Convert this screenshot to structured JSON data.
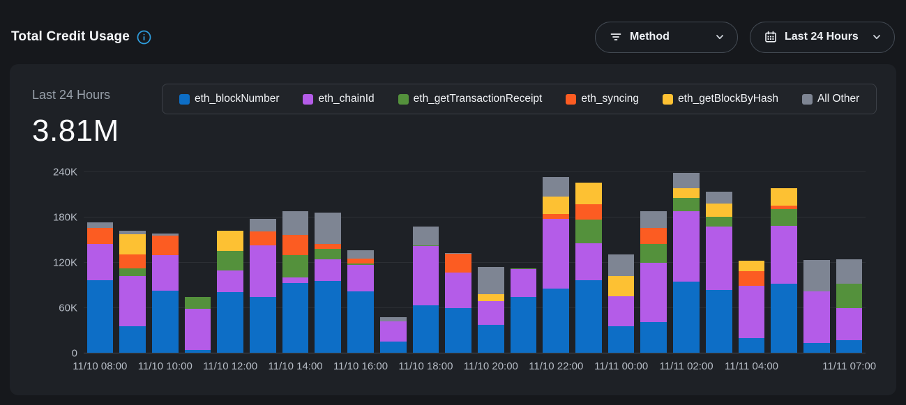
{
  "header": {
    "title": "Total Credit Usage",
    "filter_button": {
      "label": "Method"
    },
    "range_button": {
      "label": "Last 24 Hours"
    }
  },
  "summary": {
    "period_label": "Last 24 Hours",
    "total": "3.81M"
  },
  "colors": {
    "page_bg": "#16181c",
    "card_bg": "#1e2126",
    "accent_info": "#2f9fe0"
  },
  "chart_data": {
    "type": "bar",
    "stacked": true,
    "title": "Total Credit Usage - Last 24 Hours",
    "values_in": "thousands_of_credits",
    "ylim": [
      0,
      240000
    ],
    "y_ticks": [
      "0",
      "60K",
      "120K",
      "180K",
      "240K"
    ],
    "grid": true,
    "legend_position": "top",
    "categories": [
      "11/10 08:00",
      "11/10 09:00",
      "11/10 10:00",
      "11/10 11:00",
      "11/10 12:00",
      "11/10 13:00",
      "11/10 14:00",
      "11/10 15:00",
      "11/10 16:00",
      "11/10 17:00",
      "11/10 18:00",
      "11/10 19:00",
      "11/10 20:00",
      "11/10 21:00",
      "11/10 22:00",
      "11/10 23:00",
      "11/11 00:00",
      "11/11 01:00",
      "11/11 02:00",
      "11/11 03:00",
      "11/11 04:00",
      "11/11 05:00",
      "11/11 06:00",
      "11/11 07:00"
    ],
    "x_tick_labels": [
      "11/10 08:00",
      "11/10 10:00",
      "11/10 12:00",
      "11/10 14:00",
      "11/10 16:00",
      "11/10 18:00",
      "11/10 20:00",
      "11/10 22:00",
      "11/11 00:00",
      "11/11 02:00",
      "11/11 04:00",
      "11/11 07:00"
    ],
    "x_tick_indices": [
      0,
      2,
      4,
      6,
      8,
      10,
      12,
      14,
      16,
      18,
      20,
      23
    ],
    "series": [
      {
        "name": "eth_blockNumber",
        "color": "#0d6ec6",
        "values": [
          96,
          35,
          82,
          4,
          80,
          74,
          92,
          95,
          81,
          15,
          63,
          59,
          37,
          74,
          85,
          96,
          35,
          41,
          94,
          83,
          19,
          91,
          13,
          17
        ]
      },
      {
        "name": "eth_chainId",
        "color": "#b45ce8",
        "values": [
          48,
          67,
          47,
          54,
          29,
          68,
          8,
          29,
          35,
          27,
          78,
          47,
          31,
          37,
          92,
          49,
          40,
          78,
          93,
          84,
          70,
          77,
          68,
          42
        ]
      },
      {
        "name": "eth_getTransactionReceipt",
        "color": "#54913c",
        "values": [
          0,
          10,
          0,
          16,
          26,
          0,
          29,
          14,
          2,
          0,
          1,
          0,
          0,
          1,
          0,
          31,
          0,
          25,
          18,
          13,
          0,
          22,
          0,
          32
        ]
      },
      {
        "name": "eth_syncing",
        "color": "#fc5c22",
        "values": [
          21,
          18,
          26,
          0,
          0,
          19,
          27,
          6,
          7,
          0,
          0,
          25,
          0,
          0,
          7,
          21,
          0,
          21,
          0,
          0,
          19,
          5,
          0,
          0
        ]
      },
      {
        "name": "eth_getBlockByHash",
        "color": "#fdc133",
        "values": [
          0,
          27,
          0,
          0,
          27,
          0,
          0,
          0,
          0,
          0,
          0,
          0,
          10,
          0,
          23,
          28,
          27,
          0,
          13,
          18,
          14,
          23,
          0,
          0
        ]
      },
      {
        "name": "All Other",
        "color": "#7e8593",
        "values": [
          8,
          5,
          3,
          0,
          0,
          16,
          31,
          42,
          11,
          5,
          25,
          1,
          36,
          0,
          26,
          0,
          28,
          22,
          20,
          15,
          0,
          0,
          42,
          33
        ]
      }
    ]
  }
}
